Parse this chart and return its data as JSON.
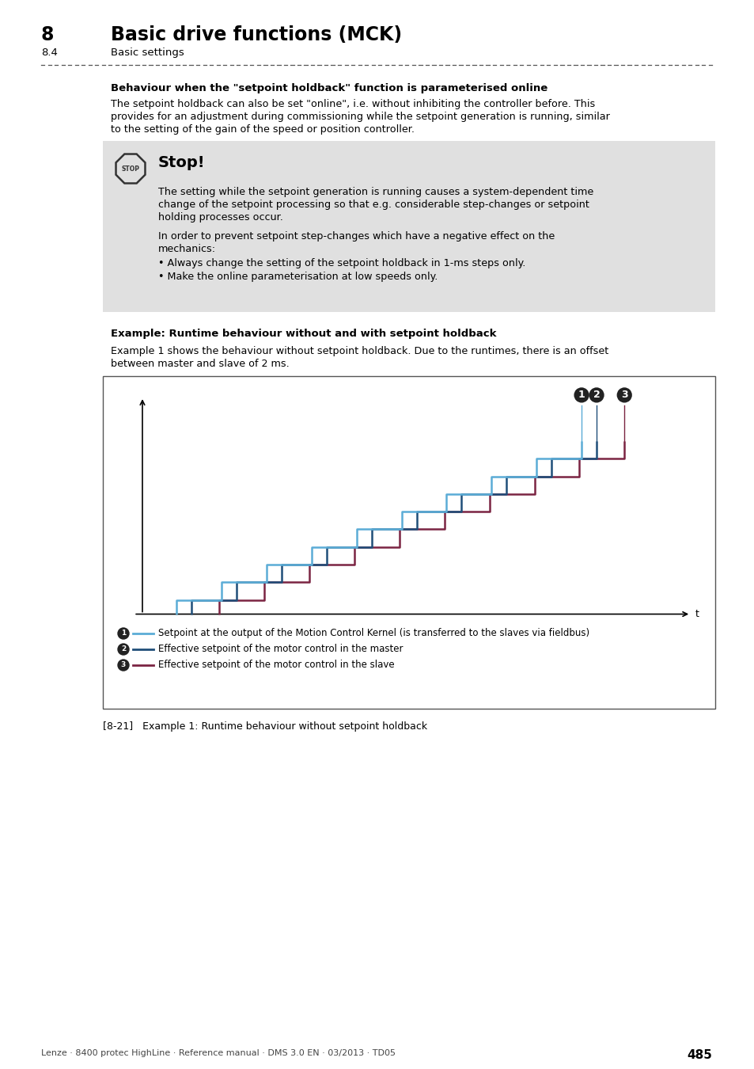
{
  "page_title_num": "8",
  "page_title_text": "Basic drive functions (MCK)",
  "page_subtitle_num": "8.4",
  "page_subtitle_text": "Basic settings",
  "section_heading": "Behaviour when the \"setpoint holdback\" function is parameterised online",
  "stop_title": "Stop!",
  "stop_body1_lines": [
    "The setting while the setpoint generation is running causes a system-dependent time",
    "change of the setpoint processing so that e.g. considerable step-changes or setpoint",
    "holding processes occur."
  ],
  "stop_body2_lines": [
    "In order to prevent setpoint step-changes which have a negative effect on the",
    "mechanics:"
  ],
  "stop_bullet1": "Always change the setting of the setpoint holdback in 1-ms steps only.",
  "stop_bullet2": "Make the online parameterisation at low speeds only.",
  "section_body_lines": [
    "The setpoint holdback can also be set \"online\", i.e. without inhibiting the controller before. This",
    "provides for an adjustment during commissioning while the setpoint generation is running, similar",
    "to the setting of the gain of the speed or position controller."
  ],
  "example_heading": "Example: Runtime behaviour without and with setpoint holdback",
  "example_body_lines": [
    "Example 1 shows the behaviour without setpoint holdback. Due to the runtimes, there is an offset",
    "between master and slave of 2 ms."
  ],
  "legend1": "Setpoint at the output of the Motion Control Kernel (is transferred to the slaves via fieldbus)",
  "legend2": "Effective setpoint of the motor control in the master",
  "legend3": "Effective setpoint of the motor control in the slave",
  "caption": "[8-21]   Example 1: Runtime behaviour without setpoint holdback",
  "footer": "Lenze · 8400 protec HighLine · Reference manual · DMS 3.0 EN · 03/2013 · TD05",
  "page_num": "485",
  "color_line1": "#5bacd6",
  "color_line2": "#1f4e79",
  "color_line3": "#7b2442",
  "stop_bg": "#e0e0e0"
}
